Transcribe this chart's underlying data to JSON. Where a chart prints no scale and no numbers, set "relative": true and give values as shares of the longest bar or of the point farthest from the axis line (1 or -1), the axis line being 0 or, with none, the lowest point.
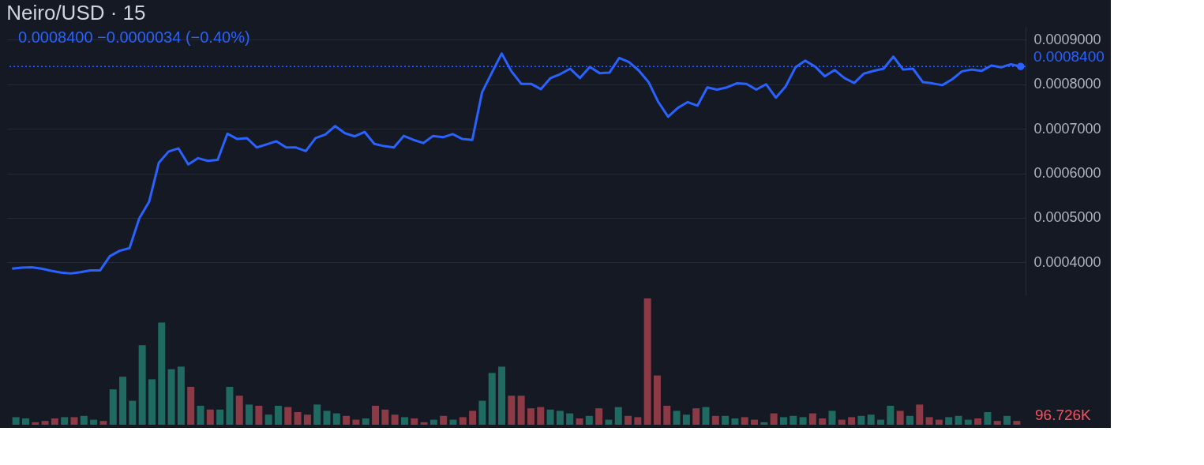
{
  "chart_data": [
    {
      "type": "line",
      "title": "Neiro/USD · 15",
      "annotations": [
        "0.0008400 −0.0000034 (−0.40%)"
      ],
      "categories": [
        null,
        null,
        null,
        null,
        null,
        null,
        null,
        null,
        null,
        null,
        null,
        null,
        null,
        null,
        null,
        null,
        null,
        null,
        null,
        null,
        null,
        null,
        null,
        null,
        null,
        null,
        null,
        null,
        null,
        null,
        null,
        null,
        null,
        null,
        null,
        null,
        null,
        null,
        null,
        null,
        null,
        null,
        null,
        null,
        null,
        null,
        null,
        null,
        null,
        null,
        null,
        null,
        null,
        null,
        null,
        null,
        null,
        null,
        null,
        null,
        null,
        null,
        null,
        null,
        null,
        null,
        null,
        null,
        null,
        null,
        null,
        null,
        null,
        null,
        null,
        null,
        null,
        null,
        null,
        null,
        null,
        null,
        null,
        null,
        null,
        null,
        null,
        null,
        null,
        null,
        null,
        null,
        null,
        null,
        null,
        null,
        null,
        null,
        null,
        null,
        null,
        null,
        null,
        null
      ],
      "series": [
        {
          "color": "#2962ff",
          "values": [
            0.000386,
            0.000388,
            0.000389,
            0.000386,
            0.000381,
            0.000377,
            0.000375,
            0.000378,
            0.000382,
            0.000382,
            0.000414,
            0.000426,
            0.000432,
            0.000499,
            0.000536,
            0.000624,
            0.000649,
            0.000656,
            0.00062,
            0.000634,
            0.000628,
            0.00063,
            0.000689,
            0.000677,
            0.000679,
            0.000658,
            0.000665,
            0.000672,
            0.000658,
            0.000658,
            0.00065,
            0.000679,
            0.000687,
            0.000706,
            0.00069,
            0.000683,
            0.000693,
            0.000666,
            0.000661,
            0.000658,
            0.000684,
            0.000675,
            0.000668,
            0.000684,
            0.000681,
            0.000688,
            0.000677,
            0.000675,
            0.000782,
            0.000826,
            0.000869,
            0.000829,
            0.000801,
            0.000801,
            0.000789,
            0.000814,
            0.000823,
            0.000835,
            0.000814,
            0.000839,
            0.000825,
            0.000826,
            0.000859,
            0.00085,
            0.000831,
            0.000805,
            0.00076,
            0.000727,
            0.000747,
            0.00076,
            0.000752,
            0.000793,
            0.000788,
            0.000793,
            0.000802,
            0.000801,
            0.000788,
            0.0008,
            0.00077,
            0.000795,
            0.000838,
            0.000853,
            0.00084,
            0.000818,
            0.000832,
            0.000814,
            0.000803,
            0.000824,
            0.00083,
            0.000835,
            0.000862,
            0.000833,
            0.000835,
            0.000805,
            0.000802,
            0.000798,
            0.000811,
            0.000829,
            0.000833,
            0.00083,
            0.000842,
            0.000838,
            0.000845,
            0.00084
          ]
        }
      ],
      "ylim": [
        0.000326,
        0.000929
      ],
      "yticks": [
        {
          "value": 0.0004,
          "label": "0.0004000"
        },
        {
          "value": 0.0005,
          "label": "0.0005000"
        },
        {
          "value": 0.0006,
          "label": "0.0006000"
        },
        {
          "value": 0.0007,
          "label": "0.0007000"
        },
        {
          "value": 0.0008,
          "label": "0.0008000"
        },
        {
          "value": 0.0009,
          "label": "0.0009000"
        }
      ],
      "ref_lines": [
        {
          "axis": "y",
          "value": 0.00084,
          "label": "0.0008400",
          "color": "#2962ff",
          "line_style": "dotted"
        }
      ],
      "grid": "y",
      "tick_labels": "y"
    },
    {
      "type": "bar",
      "relative": true,
      "annotations": [
        "96.726K"
      ],
      "categories": [
        null,
        null,
        null,
        null,
        null,
        null,
        null,
        null,
        null,
        null,
        null,
        null,
        null,
        null,
        null,
        null,
        null,
        null,
        null,
        null,
        null,
        null,
        null,
        null,
        null,
        null,
        null,
        null,
        null,
        null,
        null,
        null,
        null,
        null,
        null,
        null,
        null,
        null,
        null,
        null,
        null,
        null,
        null,
        null,
        null,
        null,
        null,
        null,
        null,
        null,
        null,
        null,
        null,
        null,
        null,
        null,
        null,
        null,
        null,
        null,
        null,
        null,
        null,
        null,
        null,
        null,
        null,
        null,
        null,
        null,
        null,
        null,
        null,
        null,
        null,
        null,
        null,
        null,
        null,
        null,
        null,
        null,
        null,
        null,
        null,
        null,
        null,
        null,
        null,
        null,
        null,
        null,
        null,
        null,
        null,
        null,
        null,
        null,
        null,
        null,
        null,
        null,
        null,
        null
      ],
      "values": [
        0.06,
        0.05,
        0.02,
        0.03,
        0.05,
        0.06,
        0.06,
        0.07,
        0.04,
        0.03,
        0.28,
        0.38,
        0.19,
        0.63,
        0.36,
        0.81,
        0.44,
        0.46,
        0.3,
        0.15,
        0.12,
        0.12,
        0.3,
        0.23,
        0.16,
        0.15,
        0.08,
        0.15,
        0.14,
        0.1,
        0.08,
        0.16,
        0.11,
        0.09,
        0.07,
        0.04,
        0.05,
        0.15,
        0.12,
        0.08,
        0.06,
        0.05,
        0.02,
        0.04,
        0.07,
        0.04,
        0.06,
        0.11,
        0.19,
        0.41,
        0.46,
        0.23,
        0.23,
        0.13,
        0.14,
        0.12,
        0.11,
        0.09,
        0.05,
        0.07,
        0.13,
        0.04,
        0.14,
        0.07,
        0.06,
        1,
        0.39,
        0.15,
        0.11,
        0.08,
        0.13,
        0.14,
        0.07,
        0.07,
        0.05,
        0.06,
        0.04,
        0.02,
        0.09,
        0.06,
        0.07,
        0.06,
        0.09,
        0.05,
        0.11,
        0.04,
        0.06,
        0.07,
        0.08,
        0.04,
        0.15,
        0.11,
        0.07,
        0.16,
        0.06,
        0.04,
        0.06,
        0.07,
        0.04,
        0.05,
        0.1,
        0.03,
        0.07,
        0.03
      ],
      "colors": [
        "#1f6b62",
        "#1f6b62",
        "#8b3a46",
        "#8b3a46",
        "#8b3a46",
        "#1f6b62",
        "#8b3a46",
        "#1f6b62",
        "#1f6b62",
        "#8b3a46",
        "#1f6b62",
        "#1f6b62",
        "#1f6b62",
        "#1f6b62",
        "#1f6b62",
        "#1f6b62",
        "#1f6b62",
        "#1f6b62",
        "#8b3a46",
        "#1f6b62",
        "#8b3a46",
        "#1f6b62",
        "#1f6b62",
        "#8b3a46",
        "#1f6b62",
        "#8b3a46",
        "#1f6b62",
        "#1f6b62",
        "#8b3a46",
        "#8b3a46",
        "#8b3a46",
        "#1f6b62",
        "#1f6b62",
        "#1f6b62",
        "#8b3a46",
        "#8b3a46",
        "#1f6b62",
        "#8b3a46",
        "#8b3a46",
        "#8b3a46",
        "#1f6b62",
        "#8b3a46",
        "#8b3a46",
        "#1f6b62",
        "#8b3a46",
        "#1f6b62",
        "#8b3a46",
        "#8b3a46",
        "#1f6b62",
        "#1f6b62",
        "#1f6b62",
        "#8b3a46",
        "#8b3a46",
        "#8b3a46",
        "#8b3a46",
        "#1f6b62",
        "#1f6b62",
        "#1f6b62",
        "#8b3a46",
        "#1f6b62",
        "#8b3a46",
        "#1f6b62",
        "#1f6b62",
        "#8b3a46",
        "#8b3a46",
        "#8b3a46",
        "#8b3a46",
        "#8b3a46",
        "#1f6b62",
        "#1f6b62",
        "#8b3a46",
        "#1f6b62",
        "#8b3a46",
        "#1f6b62",
        "#1f6b62",
        "#8b3a46",
        "#8b3a46",
        "#1f6b62",
        "#8b3a46",
        "#1f6b62",
        "#1f6b62",
        "#1f6b62",
        "#8b3a46",
        "#8b3a46",
        "#1f6b62",
        "#8b3a46",
        "#8b3a46",
        "#1f6b62",
        "#1f6b62",
        "#1f6b62",
        "#1f6b62",
        "#8b3a46",
        "#1f6b62",
        "#8b3a46",
        "#8b3a46",
        "#8b3a46",
        "#1f6b62",
        "#1f6b62",
        "#1f6b62",
        "#8b3a46",
        "#1f6b62",
        "#8b3a46",
        "#1f6b62",
        "#8b3a46"
      ]
    }
  ]
}
